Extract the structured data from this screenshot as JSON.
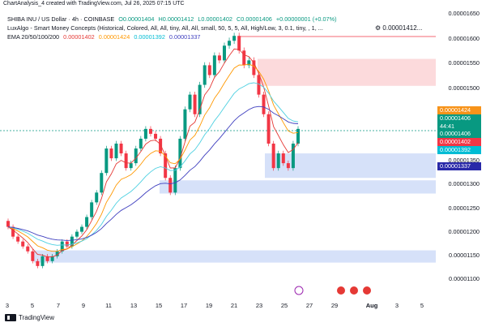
{
  "caption": "ChartAnalysis_4 created with TradingView.com, Jul 26, 2025 07:15 UTC",
  "legend": {
    "line1_prefix": "SHIBA INU / US Dollar · 4h · COINBASE",
    "line1_o": "O0.00001404",
    "line1_h": "H0.00001412",
    "line1_l": "L0.00001402",
    "line1_c": "C0.00001406",
    "line1_chg": "+0.00000001 (+0.07%)",
    "line2": "LuxAlgo - Smart Money Concepts (Historical, Colored, All, All, tiny, All, All, small, 50, 5, 5, All, High/Low, 3, 0.1, tiny, , 1, ...",
    "line2_val": "0.00001412...",
    "line3_prefix": "EMA 20/50/100/200",
    "ema20": "0.00001402",
    "ema50": "0.00001424",
    "ema100": "0.00001392",
    "ema200": "0.00001337"
  },
  "colors": {
    "ema20": "#e53935",
    "ema50": "#ff9800",
    "ema100": "#4dd0e1",
    "ema200": "#3f3fbf",
    "up": "#089981",
    "down": "#f23645",
    "supply": "#fbd3d6",
    "demand": "#cfdcf8",
    "ema20_label": "#f23645",
    "ema50_label": "#f7931a",
    "ema100_label": "#00bcd4",
    "ema200_label": "#2929a8",
    "last_label": "#089981"
  },
  "price_axis": [
    "0.00001650",
    "0.00001600",
    "0.00001550",
    "0.00001500",
    "0.00001450",
    "0.00001400",
    "0.00001350",
    "0.00001300",
    "0.00001250",
    "0.00001200",
    "0.00001150",
    "0.00001100"
  ],
  "price_tags": {
    "ema50": "0.00001424",
    "last": "0.00001406",
    "countdown": "44:41",
    "ema20": "0.00001402",
    "ema100": "0.00001392",
    "ema200": "0.00001337"
  },
  "time_axis": [
    "3",
    "5",
    "7",
    "9",
    "11",
    "13",
    "15",
    "17",
    "19",
    "21",
    "23",
    "25",
    "27",
    "29",
    "Aug",
    "3",
    "5"
  ],
  "footer": "TradingView",
  "chart_data": {
    "type": "candlestick",
    "interval": "4h",
    "symbol": "SHIBA INU / US Dollar",
    "ylim": [
      1.085e-05,
      1.66e-05
    ],
    "zones": [
      {
        "kind": "supply",
        "from": 1.553e-05,
        "to": 1.498e-05
      },
      {
        "kind": "demand",
        "from": 1.36e-05,
        "to": 1.31e-05
      },
      {
        "kind": "demand",
        "from": 1.305e-05,
        "to": 1.278e-05
      },
      {
        "kind": "demand",
        "from": 1.162e-05,
        "to": 1.137e-05
      }
    ],
    "candles_close": [
      1.21e-05,
      1.19e-05,
      1.18e-05,
      1.17e-05,
      1.16e-05,
      1.14e-05,
      1.13e-05,
      1.15e-05,
      1.14e-05,
      1.15e-05,
      1.16e-05,
      1.18e-05,
      1.17e-05,
      1.19e-05,
      1.2e-05,
      1.21e-05,
      1.23e-05,
      1.26e-05,
      1.28e-05,
      1.32e-05,
      1.37e-05,
      1.35e-05,
      1.38e-05,
      1.36e-05,
      1.33e-05,
      1.34e-05,
      1.37e-05,
      1.39e-05,
      1.41e-05,
      1.4e-05,
      1.39e-05,
      1.36e-05,
      1.31e-05,
      1.28e-05,
      1.33e-05,
      1.39e-05,
      1.45e-05,
      1.48e-05,
      1.44e-05,
      1.5e-05,
      1.54e-05,
      1.52e-05,
      1.56e-05,
      1.55e-05,
      1.58e-05,
      1.59e-05,
      1.6e-05,
      1.57e-05,
      1.54e-05,
      1.55e-05,
      1.52e-05,
      1.48e-05,
      1.44e-05,
      1.38e-05,
      1.33e-05,
      1.36e-05,
      1.34e-05,
      1.33e-05,
      1.38e-05,
      1.41e-05
    ]
  }
}
